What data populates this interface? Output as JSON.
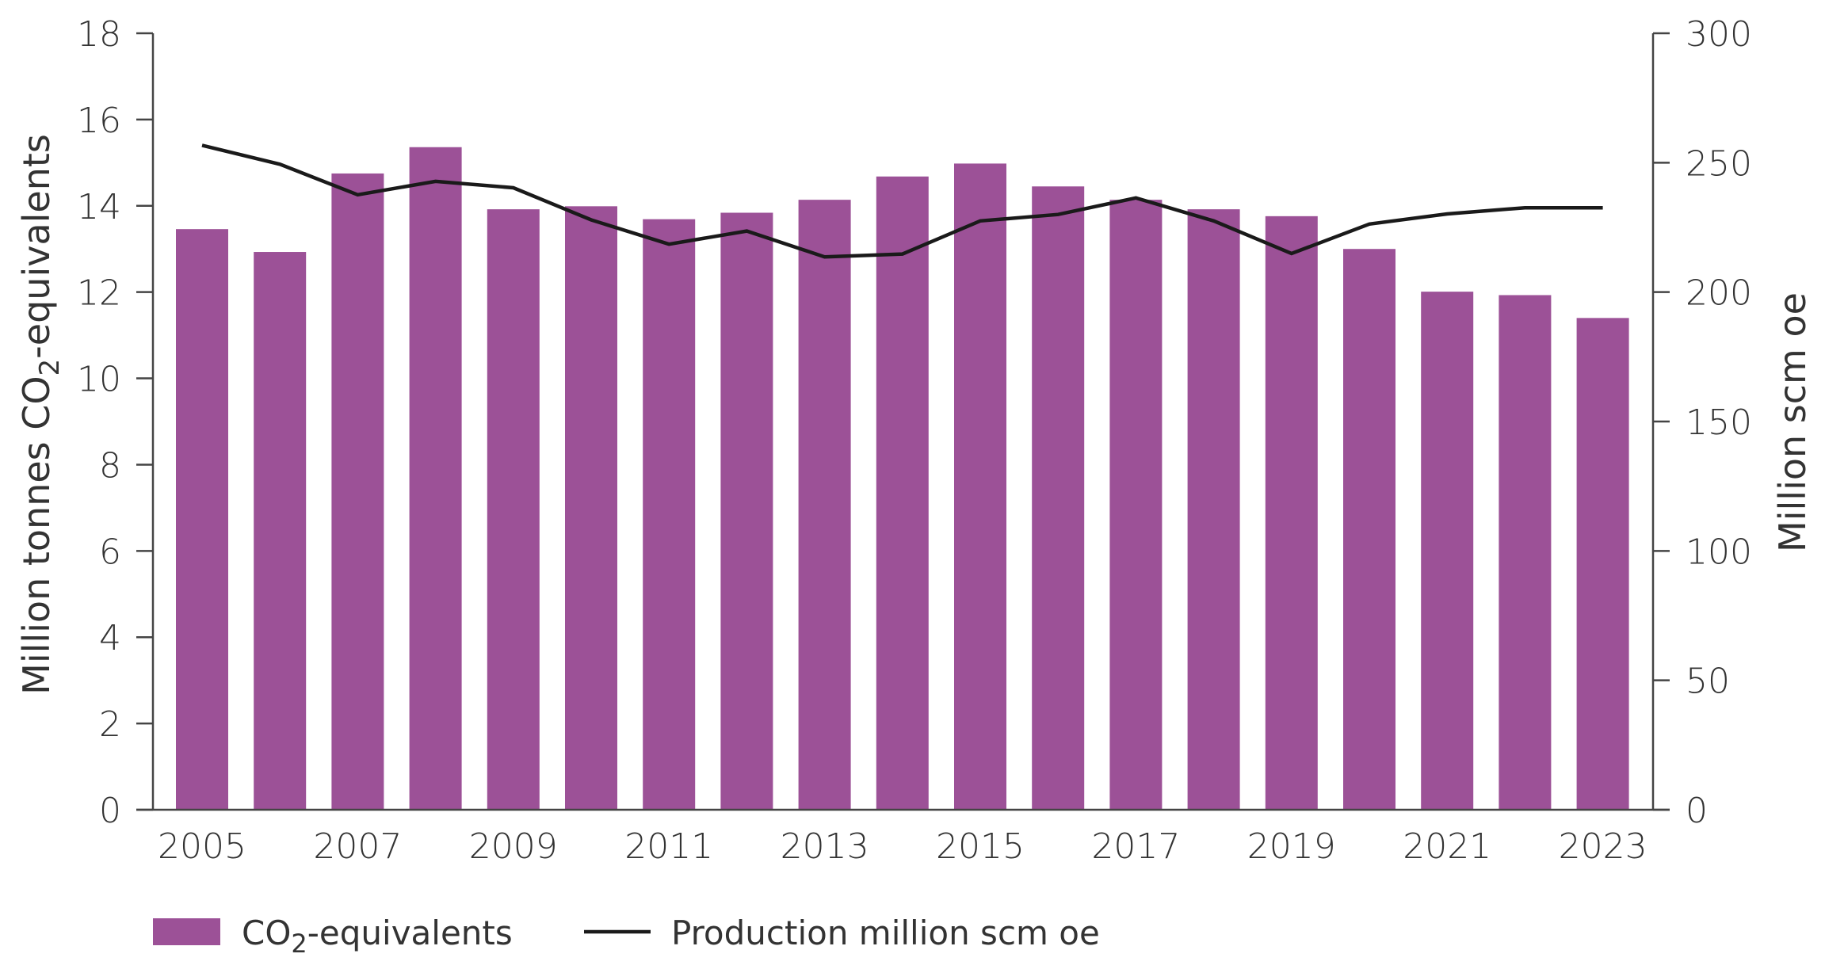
{
  "chart_data": {
    "type": "bar+line",
    "title": "",
    "categories": [
      "2005",
      "2006",
      "2007",
      "2008",
      "2009",
      "2010",
      "2011",
      "2012",
      "2013",
      "2014",
      "2015",
      "2016",
      "2017",
      "2018",
      "2019",
      "2020",
      "2021",
      "2022",
      "2023"
    ],
    "x_tick_labels": [
      "2005",
      "2007",
      "2009",
      "2011",
      "2013",
      "2015",
      "2017",
      "2019",
      "2021",
      "2023"
    ],
    "series": [
      {
        "name": "CO2-equivalents",
        "type": "bar",
        "axis": "left",
        "color": "#9c5197",
        "values": [
          13.46,
          12.93,
          14.75,
          15.36,
          13.92,
          13.99,
          13.69,
          13.84,
          14.14,
          14.68,
          14.98,
          14.45,
          14.14,
          13.92,
          13.76,
          13.0,
          12.01,
          11.93,
          11.4
        ]
      },
      {
        "name": "Production million scm oe",
        "type": "line",
        "axis": "right",
        "color": "#1a1a1a",
        "values": [
          256.7,
          249.4,
          237.6,
          242.8,
          240.3,
          227.9,
          218.5,
          223.6,
          213.6,
          214.7,
          227.5,
          230.0,
          236.4,
          227.5,
          214.9,
          226.3,
          230.2,
          232.6,
          232.6
        ]
      }
    ],
    "ylabel": "Million tonnes CO2-equivalents",
    "ylabel_parts": {
      "pre": "Million tonnes CO",
      "sub": "2",
      "post": "-equivalents"
    },
    "ylim": [
      0,
      18
    ],
    "y_ticks": [
      0,
      2,
      4,
      6,
      8,
      10,
      12,
      14,
      16,
      18
    ],
    "y2label": "Million scm oe",
    "y2lim": [
      0,
      300
    ],
    "y2_ticks": [
      0,
      50,
      100,
      150,
      200,
      250,
      300
    ],
    "xlabel": "",
    "grid": false,
    "legend_position": "bottom-left",
    "legend": [
      {
        "label": "CO2-equivalents",
        "pre": "CO",
        "sub": "2",
        "post": "-equivalents",
        "kind": "bar-swatch"
      },
      {
        "label": "Production million scm oe",
        "kind": "line"
      }
    ]
  }
}
